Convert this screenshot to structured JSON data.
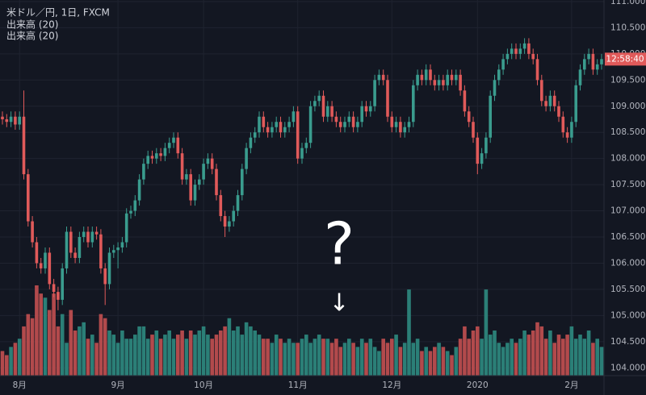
{
  "chart_data": {
    "type": "candlestick",
    "title": "米ドル／円, 1日, FXCM",
    "indicators": [
      "出来高 (20)",
      "出来高 (20)"
    ],
    "categories": [
      null,
      null,
      null,
      null,
      "8月",
      null,
      null,
      null,
      null,
      null,
      null,
      null,
      null,
      null,
      null,
      null,
      null,
      null,
      null,
      null,
      null,
      null,
      null,
      null,
      null,
      null,
      null,
      "9月",
      null,
      null,
      null,
      null,
      null,
      null,
      null,
      null,
      null,
      null,
      null,
      null,
      null,
      null,
      null,
      null,
      null,
      null,
      null,
      "10月",
      null,
      null,
      null,
      null,
      null,
      null,
      null,
      null,
      null,
      null,
      null,
      null,
      null,
      null,
      null,
      null,
      null,
      null,
      null,
      null,
      null,
      "11月",
      null,
      null,
      null,
      null,
      null,
      null,
      null,
      null,
      null,
      null,
      null,
      null,
      null,
      null,
      null,
      null,
      null,
      null,
      null,
      null,
      null,
      "12月",
      null,
      null,
      null,
      null,
      null,
      null,
      null,
      null,
      null,
      null,
      null,
      null,
      null,
      null,
      null,
      null,
      null,
      null,
      null,
      "2020",
      null,
      null,
      null,
      null,
      null,
      null,
      null,
      null,
      null,
      null,
      null,
      null,
      null,
      null,
      null,
      null,
      null,
      null,
      null,
      null,
      null,
      "2月",
      null,
      null,
      null,
      null,
      null,
      null,
      null
    ],
    "open": [
      108.8,
      108.75,
      108.7,
      108.8,
      108.65,
      108.8,
      107.7,
      106.8,
      106.4,
      106.0,
      105.9,
      106.2,
      105.6,
      105.45,
      105.3,
      105.9,
      106.6,
      106.2,
      106.1,
      106.5,
      106.6,
      106.4,
      106.6,
      106.55,
      105.9,
      105.6,
      106.2,
      106.25,
      106.3,
      106.4,
      106.95,
      107.0,
      107.2,
      107.6,
      107.9,
      108.05,
      108.0,
      108.1,
      108.05,
      108.2,
      108.3,
      108.4,
      108.1,
      107.6,
      107.7,
      107.2,
      107.5,
      107.6,
      107.9,
      108.0,
      107.8,
      107.3,
      106.9,
      106.7,
      106.8,
      107.0,
      107.3,
      107.8,
      108.2,
      108.4,
      108.5,
      108.8,
      108.6,
      108.5,
      108.6,
      108.7,
      108.5,
      108.6,
      108.7,
      108.9,
      108.0,
      108.2,
      108.3,
      109.0,
      109.1,
      109.2,
      108.8,
      109.0,
      108.8,
      108.7,
      108.6,
      108.7,
      108.8,
      108.6,
      108.7,
      109.0,
      108.9,
      109.0,
      109.5,
      109.6,
      109.5,
      108.8,
      108.6,
      108.7,
      108.5,
      108.6,
      108.7,
      109.4,
      109.6,
      109.5,
      109.7,
      109.5,
      109.4,
      109.5,
      109.4,
      109.6,
      109.5,
      109.6,
      109.3,
      108.9,
      108.7,
      108.4,
      107.9,
      108.1,
      108.4,
      109.2,
      109.5,
      109.7,
      109.9,
      110.0,
      110.1,
      110.0,
      110.1,
      110.2,
      110.0,
      109.9,
      109.5,
      109.1,
      109.0,
      109.2,
      109.0,
      108.8,
      108.5,
      108.4,
      108.7,
      109.4,
      109.7,
      109.9,
      110.0,
      109.7,
      109.8
    ],
    "high": [
      108.9,
      108.85,
      108.9,
      108.9,
      108.9,
      109.3,
      107.8,
      106.9,
      106.5,
      106.1,
      106.3,
      106.3,
      105.7,
      105.55,
      106.0,
      106.7,
      106.7,
      106.3,
      106.6,
      106.7,
      106.7,
      106.7,
      106.7,
      106.65,
      106.0,
      106.3,
      106.35,
      106.4,
      106.5,
      107.05,
      107.1,
      107.3,
      107.7,
      108.0,
      108.15,
      108.15,
      108.2,
      108.2,
      108.3,
      108.4,
      108.5,
      108.5,
      108.2,
      107.8,
      107.8,
      107.6,
      107.7,
      108.0,
      108.1,
      108.1,
      107.9,
      107.4,
      107.0,
      106.9,
      107.1,
      107.4,
      107.9,
      108.3,
      108.5,
      108.6,
      108.9,
      108.9,
      108.7,
      108.7,
      108.8,
      108.8,
      108.7,
      108.8,
      109.0,
      109.0,
      108.3,
      108.4,
      109.1,
      109.2,
      109.3,
      109.3,
      109.1,
      109.1,
      108.9,
      108.8,
      108.8,
      108.9,
      108.9,
      108.8,
      109.1,
      109.1,
      109.1,
      109.6,
      109.7,
      109.7,
      109.6,
      108.9,
      108.8,
      108.8,
      108.7,
      108.8,
      109.5,
      109.7,
      109.7,
      109.8,
      109.8,
      109.6,
      109.6,
      109.6,
      109.7,
      109.7,
      109.7,
      109.7,
      109.4,
      109.0,
      108.8,
      108.5,
      108.2,
      108.5,
      109.3,
      109.6,
      109.8,
      110.0,
      110.1,
      110.2,
      110.2,
      110.2,
      110.3,
      110.3,
      110.1,
      110.0,
      109.6,
      109.2,
      109.3,
      109.3,
      109.1,
      108.9,
      108.6,
      108.8,
      109.5,
      109.8,
      110.0,
      110.1,
      110.1,
      109.9,
      110.0
    ],
    "low": [
      108.65,
      108.6,
      108.6,
      108.55,
      108.55,
      107.6,
      106.7,
      106.3,
      105.9,
      105.8,
      105.8,
      105.5,
      105.35,
      105.1,
      105.2,
      105.8,
      106.1,
      106.0,
      106.0,
      106.4,
      106.3,
      106.3,
      106.45,
      105.8,
      105.2,
      105.5,
      106.1,
      105.9,
      106.2,
      106.3,
      106.85,
      106.9,
      107.1,
      107.5,
      107.8,
      107.9,
      107.9,
      107.95,
      107.95,
      108.1,
      108.2,
      108.0,
      107.5,
      107.5,
      107.1,
      107.1,
      107.4,
      107.5,
      107.8,
      107.7,
      107.2,
      106.8,
      106.5,
      106.6,
      106.7,
      106.9,
      107.2,
      107.7,
      108.1,
      108.3,
      108.4,
      108.5,
      108.4,
      108.4,
      108.5,
      108.4,
      108.4,
      108.5,
      108.6,
      107.9,
      107.9,
      108.1,
      108.2,
      108.9,
      109.0,
      108.7,
      108.7,
      108.7,
      108.6,
      108.5,
      108.5,
      108.6,
      108.5,
      108.5,
      108.6,
      108.8,
      108.8,
      108.9,
      109.4,
      109.4,
      108.7,
      108.5,
      108.5,
      108.4,
      108.4,
      108.5,
      108.6,
      109.3,
      109.4,
      109.4,
      109.4,
      109.3,
      109.3,
      109.3,
      109.3,
      109.4,
      109.4,
      109.2,
      108.8,
      108.6,
      108.3,
      107.7,
      107.8,
      108.0,
      108.3,
      109.1,
      109.4,
      109.6,
      109.8,
      109.9,
      109.9,
      109.9,
      110.0,
      109.9,
      109.8,
      109.4,
      109.0,
      108.9,
      108.9,
      108.9,
      108.7,
      108.4,
      108.3,
      108.3,
      108.6,
      109.3,
      109.6,
      109.8,
      109.6,
      109.6,
      109.7
    ],
    "close": [
      108.75,
      108.7,
      108.8,
      108.65,
      108.8,
      107.7,
      106.8,
      106.4,
      106.0,
      105.9,
      106.2,
      105.6,
      105.45,
      105.3,
      105.9,
      106.6,
      106.2,
      106.1,
      106.5,
      106.6,
      106.4,
      106.6,
      106.55,
      105.9,
      105.6,
      106.2,
      106.25,
      106.3,
      106.4,
      106.95,
      107.0,
      107.2,
      107.6,
      107.9,
      108.05,
      108.0,
      108.1,
      108.05,
      108.2,
      108.3,
      108.4,
      108.1,
      107.6,
      107.7,
      107.2,
      107.5,
      107.6,
      107.9,
      108.0,
      107.8,
      107.3,
      106.9,
      106.7,
      106.8,
      107.0,
      107.3,
      107.8,
      108.2,
      108.4,
      108.5,
      108.8,
      108.6,
      108.5,
      108.6,
      108.7,
      108.5,
      108.6,
      108.7,
      108.9,
      108.0,
      108.2,
      108.3,
      109.0,
      109.1,
      109.2,
      108.8,
      109.0,
      108.8,
      108.7,
      108.6,
      108.7,
      108.8,
      108.6,
      108.7,
      109.0,
      108.9,
      109.0,
      109.5,
      109.6,
      109.5,
      108.8,
      108.6,
      108.7,
      108.5,
      108.6,
      108.7,
      109.4,
      109.6,
      109.5,
      109.7,
      109.5,
      109.4,
      109.5,
      109.4,
      109.6,
      109.5,
      109.6,
      109.3,
      108.9,
      108.7,
      108.4,
      107.9,
      108.1,
      108.4,
      109.2,
      109.5,
      109.7,
      109.9,
      110.0,
      110.1,
      110.0,
      110.1,
      110.2,
      110.0,
      109.9,
      109.5,
      109.1,
      109.0,
      109.2,
      109.0,
      108.8,
      108.5,
      108.4,
      108.7,
      109.4,
      109.7,
      109.9,
      110.0,
      109.7,
      109.8,
      109.9
    ],
    "volume": [
      30,
      25,
      35,
      40,
      45,
      60,
      75,
      70,
      110,
      100,
      95,
      80,
      100,
      60,
      75,
      40,
      80,
      55,
      60,
      65,
      45,
      50,
      40,
      75,
      70,
      55,
      50,
      40,
      55,
      45,
      45,
      50,
      60,
      60,
      45,
      50,
      55,
      45,
      50,
      55,
      45,
      50,
      55,
      45,
      55,
      50,
      55,
      60,
      50,
      45,
      50,
      55,
      60,
      70,
      55,
      60,
      50,
      65,
      60,
      55,
      50,
      45,
      45,
      40,
      50,
      45,
      40,
      45,
      40,
      40,
      45,
      50,
      40,
      45,
      50,
      45,
      45,
      40,
      45,
      35,
      40,
      45,
      40,
      35,
      45,
      40,
      45,
      35,
      30,
      45,
      40,
      45,
      50,
      35,
      40,
      105,
      40,
      45,
      30,
      35,
      30,
      35,
      40,
      35,
      30,
      25,
      35,
      45,
      60,
      45,
      55,
      60,
      45,
      105,
      50,
      55,
      40,
      35,
      40,
      45,
      40,
      45,
      55,
      50,
      55,
      65,
      60,
      45,
      55,
      40,
      50,
      45,
      50,
      60,
      45,
      50,
      45,
      55,
      40,
      45,
      35
    ],
    "ylim": [
      103.85,
      111.03
    ],
    "yticks": [
      {
        "value": 104,
        "label": "104.000"
      },
      {
        "value": 104.5,
        "label": "104.500"
      },
      {
        "value": 105,
        "label": "105.000"
      },
      {
        "value": 105.5,
        "label": "105.500"
      },
      {
        "value": 106,
        "label": "106.000"
      },
      {
        "value": 106.5,
        "label": "106.500"
      },
      {
        "value": 107,
        "label": "107.000"
      },
      {
        "value": 107.5,
        "label": "107.500"
      },
      {
        "value": 108,
        "label": "108.000"
      },
      {
        "value": 108.5,
        "label": "108.500"
      },
      {
        "value": 109,
        "label": "109.000"
      },
      {
        "value": 109.5,
        "label": "109.500"
      },
      {
        "value": 110,
        "label": "110.000"
      },
      {
        "value": 110.5,
        "label": "110.500"
      },
      {
        "value": 111,
        "label": "111.000"
      }
    ],
    "grid": true,
    "up_color": "#3a9c8e",
    "down_color": "#e05a5a",
    "volume_up_color": "#2b7f77",
    "volume_down_color": "#b24a4c",
    "countdown": "12:58:40",
    "annotations": [
      "?",
      "↓"
    ]
  }
}
